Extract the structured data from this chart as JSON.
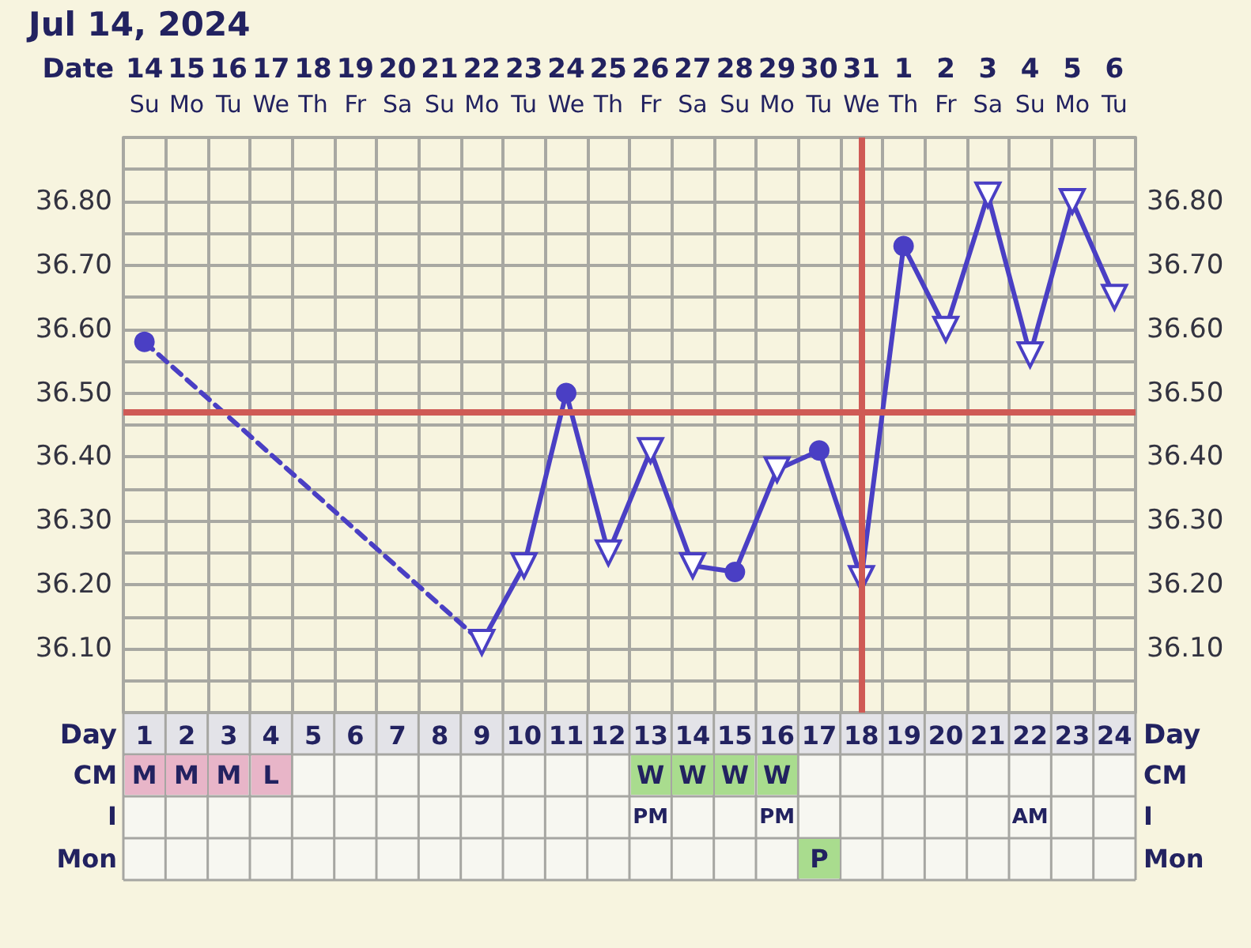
{
  "chart_data": [
    {
      "type": "line",
      "title": "Jul 14, 2024",
      "xlabel": "Date",
      "x2label": "Day",
      "categories": [
        "14 Su",
        "15 Mo",
        "16 Tu",
        "17 We",
        "18 Th",
        "19 Fr",
        "20 Sa",
        "21 Su",
        "22 Mo",
        "23 Tu",
        "24 We",
        "25 Th",
        "26 Fr",
        "27 Sa",
        "28 Su",
        "29 Mo",
        "30 Tu",
        "31 We",
        "1 Th",
        "2 Fr",
        "3 Sa",
        "4 Su",
        "5 Mo",
        "6 Tu"
      ],
      "x2lim": [
        0.5,
        24.5
      ],
      "x2ticks": [
        1,
        2,
        3,
        4,
        5,
        6,
        7,
        8,
        9,
        10,
        11,
        12,
        13,
        14,
        15,
        16,
        17,
        18,
        19,
        20,
        21,
        22,
        23,
        24
      ],
      "ylim": [
        36.0,
        36.9
      ],
      "yticks": [
        {
          "value": 36.0,
          "label": null
        },
        {
          "value": 36.05,
          "label": null
        },
        {
          "value": 36.1,
          "label": "36.10"
        },
        {
          "value": 36.15,
          "label": null
        },
        {
          "value": 36.2,
          "label": "36.20"
        },
        {
          "value": 36.25,
          "label": null
        },
        {
          "value": 36.3,
          "label": "36.30"
        },
        {
          "value": 36.35,
          "label": null
        },
        {
          "value": 36.4,
          "label": "36.40"
        },
        {
          "value": 36.45,
          "label": null
        },
        {
          "value": 36.5,
          "label": "36.50"
        },
        {
          "value": 36.55,
          "label": null
        },
        {
          "value": 36.6,
          "label": "36.60"
        },
        {
          "value": 36.65,
          "label": null
        },
        {
          "value": 36.7,
          "label": "36.70"
        },
        {
          "value": 36.75,
          "label": null
        },
        {
          "value": 36.8,
          "label": "36.80"
        },
        {
          "value": 36.85,
          "label": null
        },
        {
          "value": 36.9,
          "label": null
        }
      ],
      "y2lim": [
        36.0,
        36.9
      ],
      "y2ticks": [
        {
          "value": 36.0,
          "label": null
        },
        {
          "value": 36.05,
          "label": null
        },
        {
          "value": 36.1,
          "label": "36.10"
        },
        {
          "value": 36.15,
          "label": null
        },
        {
          "value": 36.2,
          "label": "36.20"
        },
        {
          "value": 36.25,
          "label": null
        },
        {
          "value": 36.3,
          "label": "36.30"
        },
        {
          "value": 36.35,
          "label": null
        },
        {
          "value": 36.4,
          "label": "36.40"
        },
        {
          "value": 36.45,
          "label": null
        },
        {
          "value": 36.5,
          "label": "36.50"
        },
        {
          "value": 36.55,
          "label": null
        },
        {
          "value": 36.6,
          "label": "36.60"
        },
        {
          "value": 36.65,
          "label": null
        },
        {
          "value": 36.7,
          "label": "36.70"
        },
        {
          "value": 36.75,
          "label": null
        },
        {
          "value": 36.8,
          "label": "36.80"
        },
        {
          "value": 36.85,
          "label": null
        },
        {
          "value": 36.9,
          "label": null
        }
      ],
      "grid": true,
      "series": [
        {
          "color": "#4a3fc4",
          "marker": "none",
          "line_style": "solid",
          "values": [
            null,
            null,
            null,
            null,
            null,
            null,
            null,
            null,
            36.11,
            36.23,
            36.5,
            36.25,
            36.41,
            36.23,
            36.22,
            36.38,
            36.41,
            36.21,
            36.73,
            36.6,
            36.81,
            36.56,
            36.8,
            36.65
          ]
        },
        {
          "color": "#4a3fc4",
          "marker": "none",
          "line_style": "dashed",
          "values": [
            36.58,
            null,
            null,
            null,
            null,
            null,
            null,
            null,
            36.11,
            null,
            null,
            null,
            null,
            null,
            null,
            null,
            null,
            null,
            null,
            null,
            null,
            null,
            null,
            null
          ]
        },
        {
          "type": "scatter",
          "color": "#4a3fc4",
          "marker": "circle",
          "x": [
            "14 Su",
            "24 We",
            "28 Su",
            "30 Tu",
            "1 Th"
          ],
          "values": [
            36.58,
            36.5,
            36.22,
            36.41,
            36.73
          ]
        },
        {
          "type": "scatter",
          "color": "#4a3fc4",
          "marker": "triangle",
          "x": [
            "22 Mo",
            "23 Tu",
            "25 Th",
            "26 Fr",
            "27 Sa",
            "29 Mo",
            "31 We",
            "2 Fr",
            "3 Sa",
            "4 Su",
            "5 Mo",
            "6 Tu"
          ],
          "values": [
            36.11,
            36.23,
            36.25,
            36.41,
            36.23,
            36.38,
            36.21,
            36.6,
            36.81,
            36.56,
            36.8,
            36.65
          ]
        }
      ],
      "ref_lines": [
        {
          "axis": "y",
          "value": 36.47,
          "color": "#cf5a55"
        },
        {
          "axis": "x",
          "value": "31 We",
          "color": "#cf5a55"
        }
      ]
    },
    {
      "type": "other",
      "y_categories": [
        "CM",
        "I",
        "Mon"
      ],
      "y2_categories": [
        "CM",
        "I",
        "Mon"
      ],
      "cell_labels": [
        [
          "M",
          "M",
          "M",
          "L",
          null,
          null,
          null,
          null,
          null,
          null,
          null,
          null,
          "W",
          "W",
          "W",
          "W",
          null,
          null,
          null,
          null,
          null,
          null,
          null,
          null
        ],
        [
          null,
          null,
          null,
          null,
          null,
          null,
          null,
          null,
          null,
          null,
          null,
          null,
          "PM",
          null,
          null,
          "PM",
          null,
          null,
          null,
          null,
          null,
          "AM",
          null,
          null
        ],
        [
          null,
          null,
          null,
          null,
          null,
          null,
          null,
          null,
          null,
          null,
          null,
          null,
          null,
          null,
          null,
          null,
          "P",
          null,
          null,
          null,
          null,
          null,
          null,
          null
        ]
      ],
      "colors": [
        [
          "#e8b5c8",
          "#e8b5c8",
          "#e8b5c8",
          "#e8b5c8",
          null,
          null,
          null,
          null,
          null,
          null,
          null,
          null,
          "#a9dc8e",
          "#a9dc8e",
          "#a9dc8e",
          "#a9dc8e",
          null,
          null,
          null,
          null,
          null,
          null,
          null,
          null
        ],
        [
          null,
          null,
          null,
          null,
          null,
          null,
          null,
          null,
          null,
          null,
          null,
          null,
          null,
          null,
          null,
          null,
          null,
          null,
          null,
          null,
          null,
          null,
          null,
          null
        ],
        [
          null,
          null,
          null,
          null,
          null,
          null,
          null,
          null,
          null,
          null,
          null,
          null,
          null,
          null,
          null,
          null,
          "#a9dc8e",
          null,
          null,
          null,
          null,
          null,
          null,
          null
        ]
      ]
    }
  ]
}
